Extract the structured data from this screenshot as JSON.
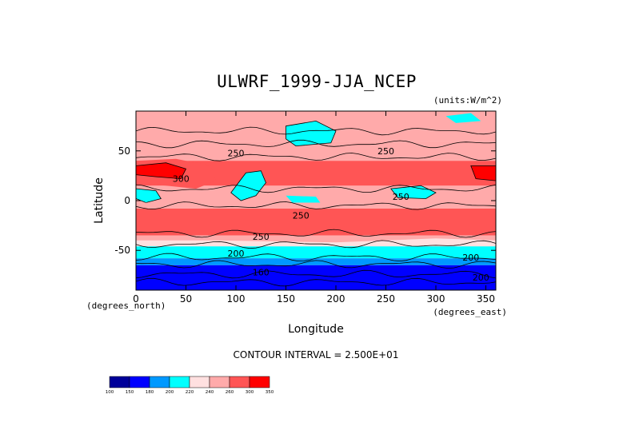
{
  "chart_data": {
    "type": "heatmap",
    "title": "ULWRF_1999-JJA_NCEP",
    "units_note": "(units:W/m^2)",
    "xlabel": "Longitude",
    "ylabel": "Latitude",
    "x_unit_note": "(degrees_east)",
    "y_unit_note": "(degrees_north)",
    "xlim": [
      0,
      360
    ],
    "ylim": [
      -90,
      90
    ],
    "x_ticks": [
      0,
      50,
      100,
      150,
      200,
      250,
      300,
      350
    ],
    "y_ticks": [
      -50,
      0,
      50
    ],
    "contour_interval_text": "CONTOUR INTERVAL = 2.500E+01",
    "contour_labels": [
      {
        "text": "250",
        "lon": 100,
        "lat": 48
      },
      {
        "text": "250",
        "lon": 250,
        "lat": 50
      },
      {
        "text": "300",
        "lon": 45,
        "lat": 22
      },
      {
        "text": "250",
        "lon": 265,
        "lat": 4
      },
      {
        "text": "250",
        "lon": 165,
        "lat": -15
      },
      {
        "text": "250",
        "lon": 125,
        "lat": -36
      },
      {
        "text": "200",
        "lon": 100,
        "lat": -53
      },
      {
        "text": "200",
        "lon": 335,
        "lat": -57
      },
      {
        "text": "160",
        "lon": 125,
        "lat": -72
      },
      {
        "text": "200",
        "lon": 345,
        "lat": -77
      }
    ],
    "colorbar": {
      "labels": [
        "100",
        "150",
        "180",
        "200",
        "220",
        "240",
        "260",
        "300",
        "350"
      ],
      "colors": [
        "#000099",
        "#0000ff",
        "#0099ff",
        "#00ffff",
        "#ffe0e0",
        "#ffaaaa",
        "#ff5555",
        "#ff0000"
      ]
    },
    "latitude_bands": [
      {
        "lat_min": 60,
        "lat_max": 90,
        "band_value": 240
      },
      {
        "lat_min": 40,
        "lat_max": 60,
        "band_value": 250
      },
      {
        "lat_min": 15,
        "lat_max": 40,
        "band_value": 280
      },
      {
        "lat_min": -5,
        "lat_max": 15,
        "band_value": 250
      },
      {
        "lat_min": -35,
        "lat_max": -5,
        "band_value": 275
      },
      {
        "lat_min": -45,
        "lat_max": -35,
        "band_value": 245
      },
      {
        "lat_min": -58,
        "lat_max": -45,
        "band_value": 215
      },
      {
        "lat_min": -65,
        "lat_max": -58,
        "band_value": 195
      },
      {
        "lat_min": -90,
        "lat_max": -65,
        "band_value": 165
      }
    ]
  }
}
